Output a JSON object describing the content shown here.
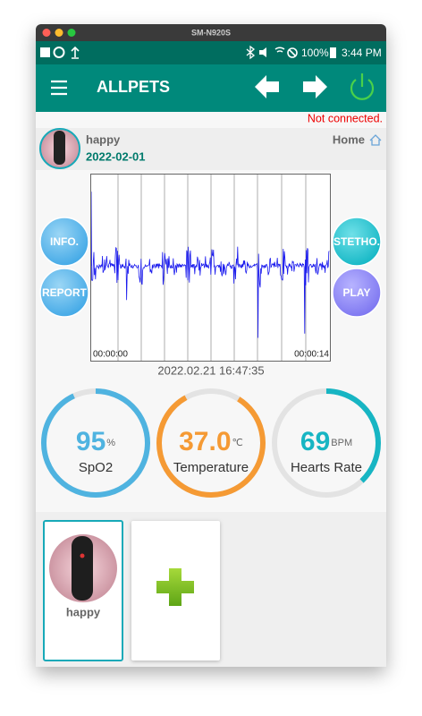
{
  "window": {
    "title": "SM-N920S"
  },
  "status_bar": {
    "battery": "100%",
    "time": "3:44 PM"
  },
  "app_bar": {
    "title": "ALLPETS"
  },
  "connection_status": "Not connected.",
  "profile": {
    "name": "happy",
    "date": "2022-02-01",
    "home": "Home"
  },
  "buttons": {
    "info": "INFO.",
    "report": "REPORT",
    "stetho": "STETHO.",
    "play": "PLAY"
  },
  "recording": {
    "start": "00:00:00",
    "end": "00:00:14",
    "timestamp": "2022.02.21 16:47:35"
  },
  "gauges": [
    {
      "value": "95",
      "unit": "%",
      "label": "SpO2"
    },
    {
      "value": "37.0",
      "unit": "℃",
      "label": "Temperature"
    },
    {
      "value": "69",
      "unit": "BPM",
      "label": "Hearts Rate"
    }
  ],
  "pets": [
    {
      "name": "happy"
    }
  ]
}
